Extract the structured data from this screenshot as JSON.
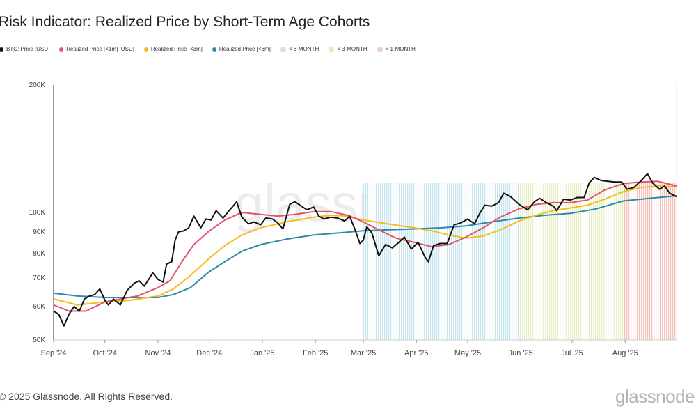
{
  "title": "Risk Indicator: Realized Price by Short-Term Age Cohorts",
  "watermark": "glassnode",
  "footer": {
    "copyright": "© 2025 Glassnode. All Rights Reserved.",
    "logo": "glassnode"
  },
  "legend": [
    {
      "label": "BTC: Price [USD]",
      "color": "#111111"
    },
    {
      "label": "Realized Price [<1m] [USD]",
      "color": "#e0556b"
    },
    {
      "label": "Realized Price [<3m]",
      "color": "#f2bd1d"
    },
    {
      "label": "Realized Price [<6m]",
      "color": "#2a8ba8"
    },
    {
      "label": "< 6-MONTH",
      "color": "#dddddd"
    },
    {
      "label": "< 3-MONTH",
      "color": "#efe9b0"
    },
    {
      "label": "< 1-MONTH",
      "color": "#f6c9cf"
    }
  ],
  "chart_data": {
    "type": "line",
    "y_scale": "log",
    "ylim": [
      50000,
      200000
    ],
    "xlim": [
      "2024-09-01",
      "2025-08-31"
    ],
    "y_ticks": [
      {
        "value": 50000,
        "label": "50K"
      },
      {
        "value": 60000,
        "label": "60K"
      },
      {
        "value": 70000,
        "label": "70K"
      },
      {
        "value": 80000,
        "label": "80K"
      },
      {
        "value": 90000,
        "label": "90K"
      },
      {
        "value": 100000,
        "label": "100K"
      },
      {
        "value": 200000,
        "label": "200K"
      }
    ],
    "x_ticks": [
      {
        "date": "2024-09-01",
        "label": "Sep '24"
      },
      {
        "date": "2024-10-01",
        "label": "Oct '24"
      },
      {
        "date": "2024-11-01",
        "label": "Nov '24"
      },
      {
        "date": "2024-12-01",
        "label": "Dec '24"
      },
      {
        "date": "2025-01-01",
        "label": "Jan '25"
      },
      {
        "date": "2025-02-01",
        "label": "Feb '25"
      },
      {
        "date": "2025-03-01",
        "label": "Mar '25"
      },
      {
        "date": "2025-04-01",
        "label": "Apr '25"
      },
      {
        "date": "2025-05-01",
        "label": "May '25"
      },
      {
        "date": "2025-06-01",
        "label": "Jun '25"
      },
      {
        "date": "2025-07-01",
        "label": "Jul '25"
      },
      {
        "date": "2025-08-01",
        "label": "Aug '25"
      }
    ],
    "regions": [
      {
        "label": "< 6-MONTH",
        "start": "2025-03-01",
        "end": "2025-05-31",
        "color": "#bfe3ec"
      },
      {
        "label": "< 3-MONTH",
        "start": "2025-05-31",
        "end": "2025-07-31",
        "color": "#e7edbe"
      },
      {
        "label": "< 1-MONTH",
        "start": "2025-07-31",
        "end": "2025-08-31",
        "color": "#f4b7ae"
      }
    ],
    "series": [
      {
        "name": "BTC: Price [USD]",
        "color": "#111111",
        "width": 2,
        "points": [
          [
            "2024-09-01",
            58500
          ],
          [
            "2024-09-04",
            57500
          ],
          [
            "2024-09-07",
            54000
          ],
          [
            "2024-09-10",
            57500
          ],
          [
            "2024-09-13",
            60000
          ],
          [
            "2024-09-16",
            58500
          ],
          [
            "2024-09-19",
            62500
          ],
          [
            "2024-09-22",
            63500
          ],
          [
            "2024-09-25",
            64000
          ],
          [
            "2024-09-28",
            66000
          ],
          [
            "2024-10-01",
            62000
          ],
          [
            "2024-10-03",
            60500
          ],
          [
            "2024-10-06",
            62500
          ],
          [
            "2024-10-10",
            60500
          ],
          [
            "2024-10-14",
            65500
          ],
          [
            "2024-10-18",
            68000
          ],
          [
            "2024-10-21",
            69000
          ],
          [
            "2024-10-24",
            67000
          ],
          [
            "2024-10-29",
            72000
          ],
          [
            "2024-11-01",
            69500
          ],
          [
            "2024-11-04",
            68500
          ],
          [
            "2024-11-06",
            75500
          ],
          [
            "2024-11-09",
            76500
          ],
          [
            "2024-11-11",
            86000
          ],
          [
            "2024-11-13",
            90000
          ],
          [
            "2024-11-16",
            90500
          ],
          [
            "2024-11-19",
            92000
          ],
          [
            "2024-11-22",
            98000
          ],
          [
            "2024-11-26",
            92000
          ],
          [
            "2024-11-29",
            96500
          ],
          [
            "2024-12-02",
            96000
          ],
          [
            "2024-12-05",
            101000
          ],
          [
            "2024-12-09",
            97000
          ],
          [
            "2024-12-13",
            101500
          ],
          [
            "2024-12-17",
            106000
          ],
          [
            "2024-12-20",
            97500
          ],
          [
            "2024-12-24",
            94000
          ],
          [
            "2024-12-27",
            95000
          ],
          [
            "2024-12-31",
            93500
          ],
          [
            "2025-01-03",
            97000
          ],
          [
            "2025-01-07",
            96500
          ],
          [
            "2025-01-10",
            94500
          ],
          [
            "2025-01-13",
            91500
          ],
          [
            "2025-01-17",
            104500
          ],
          [
            "2025-01-20",
            106000
          ],
          [
            "2025-01-23",
            104000
          ],
          [
            "2025-01-27",
            101500
          ],
          [
            "2025-01-31",
            103000
          ],
          [
            "2025-02-03",
            98000
          ],
          [
            "2025-02-06",
            96500
          ],
          [
            "2025-02-10",
            97500
          ],
          [
            "2025-02-14",
            97000
          ],
          [
            "2025-02-18",
            95500
          ],
          [
            "2025-02-21",
            98000
          ],
          [
            "2025-02-24",
            91500
          ],
          [
            "2025-02-27",
            84500
          ],
          [
            "2025-03-01",
            86000
          ],
          [
            "2025-03-03",
            92500
          ],
          [
            "2025-03-06",
            89500
          ],
          [
            "2025-03-10",
            79000
          ],
          [
            "2025-03-14",
            84000
          ],
          [
            "2025-03-18",
            82500
          ],
          [
            "2025-03-21",
            84500
          ],
          [
            "2025-03-25",
            87500
          ],
          [
            "2025-03-29",
            82000
          ],
          [
            "2025-04-02",
            85000
          ],
          [
            "2025-04-06",
            78500
          ],
          [
            "2025-04-08",
            76500
          ],
          [
            "2025-04-11",
            83500
          ],
          [
            "2025-04-15",
            84500
          ],
          [
            "2025-04-19",
            84500
          ],
          [
            "2025-04-23",
            93500
          ],
          [
            "2025-04-27",
            94500
          ],
          [
            "2025-05-01",
            96500
          ],
          [
            "2025-05-05",
            94000
          ],
          [
            "2025-05-08",
            99500
          ],
          [
            "2025-05-11",
            104000
          ],
          [
            "2025-05-15",
            103500
          ],
          [
            "2025-05-19",
            105500
          ],
          [
            "2025-05-22",
            111000
          ],
          [
            "2025-05-26",
            109000
          ],
          [
            "2025-05-31",
            104500
          ],
          [
            "2025-06-05",
            101500
          ],
          [
            "2025-06-09",
            106000
          ],
          [
            "2025-06-12",
            108000
          ],
          [
            "2025-06-16",
            105500
          ],
          [
            "2025-06-20",
            103500
          ],
          [
            "2025-06-22",
            101000
          ],
          [
            "2025-06-26",
            107500
          ],
          [
            "2025-06-30",
            107000
          ],
          [
            "2025-07-04",
            108500
          ],
          [
            "2025-07-08",
            108500
          ],
          [
            "2025-07-11",
            117500
          ],
          [
            "2025-07-14",
            121000
          ],
          [
            "2025-07-18",
            119000
          ],
          [
            "2025-07-22",
            118500
          ],
          [
            "2025-07-26",
            118000
          ],
          [
            "2025-07-30",
            118000
          ],
          [
            "2025-08-02",
            113500
          ],
          [
            "2025-08-06",
            114500
          ],
          [
            "2025-08-10",
            118500
          ],
          [
            "2025-08-14",
            123500
          ],
          [
            "2025-08-17",
            117500
          ],
          [
            "2025-08-21",
            113500
          ],
          [
            "2025-08-24",
            115500
          ],
          [
            "2025-08-27",
            111000
          ],
          [
            "2025-08-31",
            109000
          ]
        ]
      },
      {
        "name": "Realized Price [<1m] [USD]",
        "color": "#e0556b",
        "width": 2,
        "points": [
          [
            "2024-09-01",
            60500
          ],
          [
            "2024-09-10",
            58500
          ],
          [
            "2024-09-20",
            58500
          ],
          [
            "2024-10-01",
            61500
          ],
          [
            "2024-10-10",
            62500
          ],
          [
            "2024-10-20",
            63500
          ],
          [
            "2024-11-01",
            66500
          ],
          [
            "2024-11-08",
            69000
          ],
          [
            "2024-11-15",
            76500
          ],
          [
            "2024-11-22",
            84000
          ],
          [
            "2024-12-01",
            90500
          ],
          [
            "2024-12-10",
            96000
          ],
          [
            "2024-12-20",
            100000
          ],
          [
            "2024-12-31",
            99000
          ],
          [
            "2025-01-10",
            98000
          ],
          [
            "2025-01-20",
            99000
          ],
          [
            "2025-01-31",
            100500
          ],
          [
            "2025-02-10",
            100500
          ],
          [
            "2025-02-20",
            98500
          ],
          [
            "2025-03-01",
            95000
          ],
          [
            "2025-03-10",
            91000
          ],
          [
            "2025-03-20",
            87000
          ],
          [
            "2025-03-31",
            85000
          ],
          [
            "2025-04-10",
            83000
          ],
          [
            "2025-04-20",
            84000
          ],
          [
            "2025-04-30",
            87500
          ],
          [
            "2025-05-10",
            92000
          ],
          [
            "2025-05-20",
            97500
          ],
          [
            "2025-05-31",
            102000
          ],
          [
            "2025-06-10",
            104500
          ],
          [
            "2025-06-20",
            105500
          ],
          [
            "2025-06-30",
            105500
          ],
          [
            "2025-07-10",
            107000
          ],
          [
            "2025-07-20",
            113000
          ],
          [
            "2025-07-31",
            117000
          ],
          [
            "2025-08-10",
            118000
          ],
          [
            "2025-08-20",
            118500
          ],
          [
            "2025-08-31",
            115500
          ]
        ]
      },
      {
        "name": "Realized Price [<3m]",
        "color": "#f2bd1d",
        "width": 2,
        "points": [
          [
            "2024-09-01",
            62500
          ],
          [
            "2024-09-15",
            60500
          ],
          [
            "2024-10-01",
            61500
          ],
          [
            "2024-10-15",
            62000
          ],
          [
            "2024-11-01",
            63500
          ],
          [
            "2024-11-10",
            66000
          ],
          [
            "2024-11-20",
            71000
          ],
          [
            "2024-12-01",
            78000
          ],
          [
            "2024-12-10",
            83500
          ],
          [
            "2024-12-20",
            88500
          ],
          [
            "2024-12-31",
            92000
          ],
          [
            "2025-01-15",
            95000
          ],
          [
            "2025-01-31",
            97500
          ],
          [
            "2025-02-10",
            98500
          ],
          [
            "2025-02-20",
            98000
          ],
          [
            "2025-03-01",
            96000
          ],
          [
            "2025-03-15",
            94000
          ],
          [
            "2025-03-31",
            92000
          ],
          [
            "2025-04-10",
            90500
          ],
          [
            "2025-04-20",
            88500
          ],
          [
            "2025-04-30",
            87000
          ],
          [
            "2025-05-10",
            88000
          ],
          [
            "2025-05-20",
            91000
          ],
          [
            "2025-05-31",
            95500
          ],
          [
            "2025-06-10",
            98500
          ],
          [
            "2025-06-20",
            101000
          ],
          [
            "2025-06-30",
            102500
          ],
          [
            "2025-07-10",
            104000
          ],
          [
            "2025-07-20",
            107500
          ],
          [
            "2025-07-31",
            112000
          ],
          [
            "2025-08-10",
            114500
          ],
          [
            "2025-08-20",
            115500
          ],
          [
            "2025-08-31",
            115000
          ]
        ]
      },
      {
        "name": "Realized Price [<6m]",
        "color": "#2a8ba8",
        "width": 2,
        "points": [
          [
            "2024-09-01",
            64500
          ],
          [
            "2024-09-15",
            63500
          ],
          [
            "2024-10-01",
            63000
          ],
          [
            "2024-10-15",
            63000
          ],
          [
            "2024-11-01",
            63000
          ],
          [
            "2024-11-10",
            64000
          ],
          [
            "2024-11-20",
            66500
          ],
          [
            "2024-12-01",
            72500
          ],
          [
            "2024-12-10",
            76500
          ],
          [
            "2024-12-20",
            81000
          ],
          [
            "2024-12-31",
            84000
          ],
          [
            "2025-01-15",
            86500
          ],
          [
            "2025-01-31",
            88500
          ],
          [
            "2025-02-15",
            89500
          ],
          [
            "2025-02-28",
            90500
          ],
          [
            "2025-03-15",
            91000
          ],
          [
            "2025-03-31",
            91500
          ],
          [
            "2025-04-15",
            92000
          ],
          [
            "2025-04-30",
            93000
          ],
          [
            "2025-05-15",
            95000
          ],
          [
            "2025-05-31",
            97000
          ],
          [
            "2025-06-15",
            98500
          ],
          [
            "2025-06-30",
            99500
          ],
          [
            "2025-07-15",
            102000
          ],
          [
            "2025-07-31",
            106500
          ],
          [
            "2025-08-15",
            108000
          ],
          [
            "2025-08-31",
            109500
          ]
        ]
      }
    ]
  }
}
